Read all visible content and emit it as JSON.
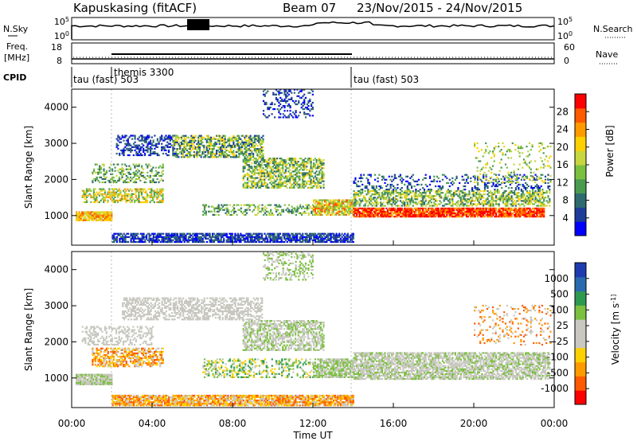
{
  "header": {
    "station": "Kapuskasing (fitACF)",
    "beam": "Beam 07",
    "dates": "23/Nov/2015 - 24/Nov/2015"
  },
  "top_panels": {
    "nsky_label": "N.Sky",
    "nsky_ticks": [
      "10^5",
      "10^0"
    ],
    "nsearch_label": "N.Search",
    "nsearch_ticks": [
      "10^5",
      "10^0"
    ],
    "freq_label": "Freq.",
    "freq_unit": "[MHz]",
    "freq_ticks": [
      "18",
      "8"
    ],
    "nave_label": "Nave",
    "nave_ticks": [
      "60",
      "0"
    ],
    "cpid_label": "CPID",
    "cpid_modes": [
      {
        "label": "tau (fast) 503",
        "start_h": 0
      },
      {
        "label": "themis 3300",
        "start_h": 2
      },
      {
        "label": "tau (fast) 503",
        "start_h": 14
      }
    ]
  },
  "chart_data": [
    {
      "type": "heatmap",
      "name": "power",
      "xlabel": "",
      "ylabel": "Slant Range [km]",
      "xlim": [
        0,
        24
      ],
      "ylim": [
        180,
        4500
      ],
      "yticks": [
        1000,
        2000,
        3000,
        4000
      ],
      "colorbar": {
        "label": "Power [dB]",
        "ticks": [
          "28",
          "24",
          "20",
          "16",
          "12",
          "8",
          "4"
        ],
        "colors": [
          "#0000ff",
          "#1e3c9a",
          "#2e6a70",
          "#4a9a50",
          "#7cc040",
          "#c8d640",
          "#ffd000",
          "#ff9a00",
          "#ff5a00",
          "#ff0000"
        ]
      }
    },
    {
      "type": "heatmap",
      "name": "velocity",
      "xlabel": "Time UT",
      "ylabel": "Slant Range [km]",
      "xlim": [
        0,
        24
      ],
      "ylim": [
        180,
        4500
      ],
      "yticks": [
        1000,
        2000,
        3000,
        4000
      ],
      "xtick_labels": [
        "00:00",
        "04:00",
        "08:00",
        "12:00",
        "16:00",
        "20:00",
        "00:00"
      ],
      "colorbar": {
        "label": "Velocity [m s^-1]",
        "ticks": [
          "1000",
          "500",
          "100",
          "25",
          "-25",
          "-100",
          "-500",
          "-1000"
        ],
        "colors": [
          "#ff0000",
          "#ff5a00",
          "#ff9a00",
          "#ffd000",
          "#c8c8c0",
          "#c8c8c0",
          "#7cc040",
          "#2e9a50",
          "#2a6ab0",
          "#1e3cb0"
        ]
      }
    }
  ]
}
